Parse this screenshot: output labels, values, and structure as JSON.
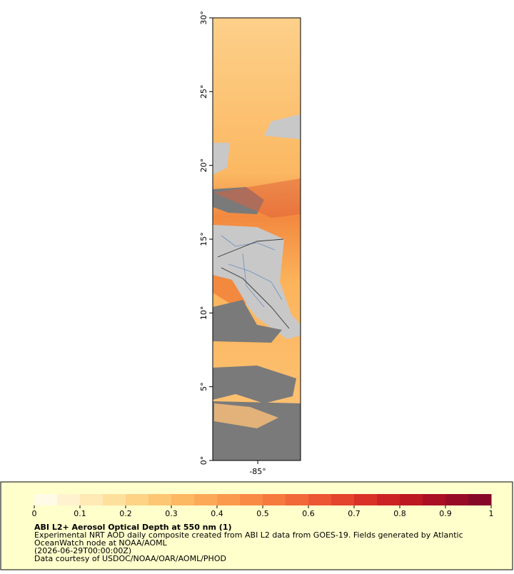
{
  "map": {
    "lat_lim": [
      0,
      30
    ],
    "lon_lim": [
      -88.05,
      -82.1
    ],
    "lat_ticks": [
      {
        "value": 0,
        "label": "0°"
      },
      {
        "value": 5,
        "label": "5°"
      },
      {
        "value": 10,
        "label": "10°"
      },
      {
        "value": 15,
        "label": "15°"
      },
      {
        "value": 20,
        "label": "20°"
      },
      {
        "value": 25,
        "label": "25°"
      },
      {
        "value": 30,
        "label": "30°"
      }
    ],
    "lon_ticks": [
      {
        "value": -85,
        "label": "-85°"
      }
    ]
  },
  "colorbar": {
    "lim": [
      0,
      1
    ],
    "ticks": [
      0,
      0.1,
      0.2,
      0.3,
      0.4,
      0.5,
      0.6,
      0.7,
      0.8,
      0.9,
      1
    ],
    "colors": [
      "#fffbe6",
      "#fff3cf",
      "#ffe9b5",
      "#fee09d",
      "#fed386",
      "#fdc672",
      "#fdb862",
      "#fca957",
      "#fb9a4d",
      "#f98a45",
      "#f6793e",
      "#f26838",
      "#ec5632",
      "#e4432c",
      "#da3127",
      "#cd2224",
      "#bd1722",
      "#ab0f24",
      "#980b27",
      "#860828"
    ]
  },
  "legend": {
    "title": "ABI L2+ Aerosol Optical Depth at 550 nm (1)",
    "lines": [
      "Experimental NRT AOD daily composite created from ABI L2 data from GOES-19. Fields generated by Atlantic",
      "OceanWatch node at NOAA/AOML",
      "(2026-06-29T00:00:00Z)",
      "Data courtesy of USDOC/NOAA/OAR/AOML/PHOD"
    ]
  }
}
